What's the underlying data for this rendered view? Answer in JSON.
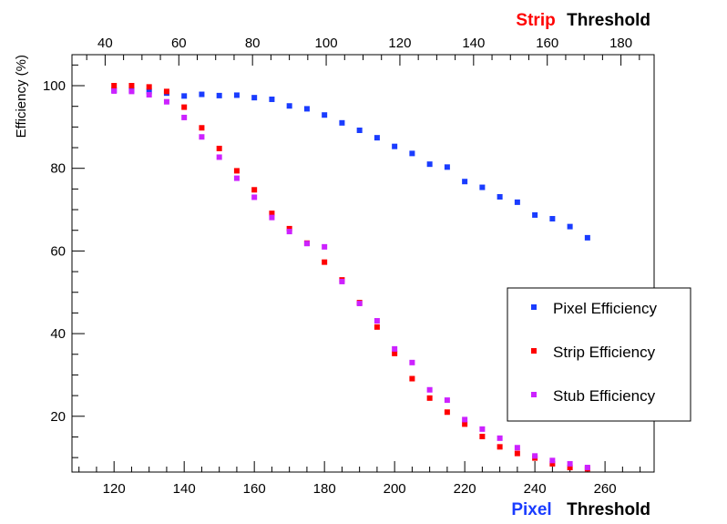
{
  "chart_data": {
    "type": "scatter",
    "title": "",
    "ylabel": "Efficiency (%)",
    "xlabel_bottom": {
      "prefix": "Pixel",
      "word": "Threshold"
    },
    "xlabel_top": {
      "prefix": "Strip",
      "word": "Threshold"
    },
    "x_bottom": {
      "range": [
        108,
        274
      ],
      "major_ticks": [
        120,
        140,
        160,
        180,
        200,
        220,
        240,
        260
      ],
      "minor_step": 5
    },
    "x_top": {
      "range": [
        31,
        189
      ],
      "major_ticks": [
        40,
        60,
        80,
        100,
        120,
        140,
        160,
        180
      ],
      "minor_step": 5
    },
    "ylim": [
      6.5,
      107.5
    ],
    "y_major_ticks": [
      20,
      40,
      60,
      80,
      100
    ],
    "y_minor_step": 5,
    "grid": false,
    "legend": "right",
    "x": [
      120,
      125,
      130,
      135,
      140,
      145,
      150,
      155,
      160,
      165,
      170,
      175,
      180,
      185,
      190,
      195,
      200,
      205,
      210,
      215,
      220,
      225,
      230,
      235,
      240,
      245,
      250,
      255
    ],
    "series": [
      {
        "name": "Pixel Efficiency",
        "color": "#1a3cff",
        "values": [
          98.9,
          98.9,
          98.6,
          98.2,
          97.5,
          97.9,
          97.6,
          97.7,
          97.1,
          96.7,
          95.1,
          94.4,
          92.9,
          91.0,
          89.2,
          87.4,
          85.3,
          83.6,
          81.0,
          80.3,
          76.8,
          75.4,
          73.1,
          71.8,
          68.7,
          67.8,
          65.9,
          63.2
        ]
      },
      {
        "name": "Strip Efficiency",
        "color": "#ff0000",
        "values": [
          100.0,
          100.0,
          99.7,
          98.6,
          94.8,
          89.8,
          84.8,
          79.4,
          74.8,
          69.1,
          65.4,
          61.9,
          57.3,
          53.0,
          47.5,
          41.6,
          35.2,
          29.1,
          24.4,
          21.0,
          18.1,
          15.1,
          12.6,
          11.0,
          9.9,
          8.5,
          7.6,
          7.3
        ]
      },
      {
        "name": "Stub Efficiency",
        "color": "#cc22ff",
        "values": [
          98.7,
          98.6,
          97.8,
          96.1,
          92.3,
          87.6,
          82.7,
          77.6,
          73.0,
          68.1,
          64.7,
          61.8,
          61.0,
          52.6,
          47.3,
          43.1,
          36.3,
          33.0,
          26.4,
          23.9,
          19.2,
          16.9,
          14.7,
          12.4,
          10.4,
          9.3,
          8.5,
          7.6
        ]
      }
    ]
  }
}
